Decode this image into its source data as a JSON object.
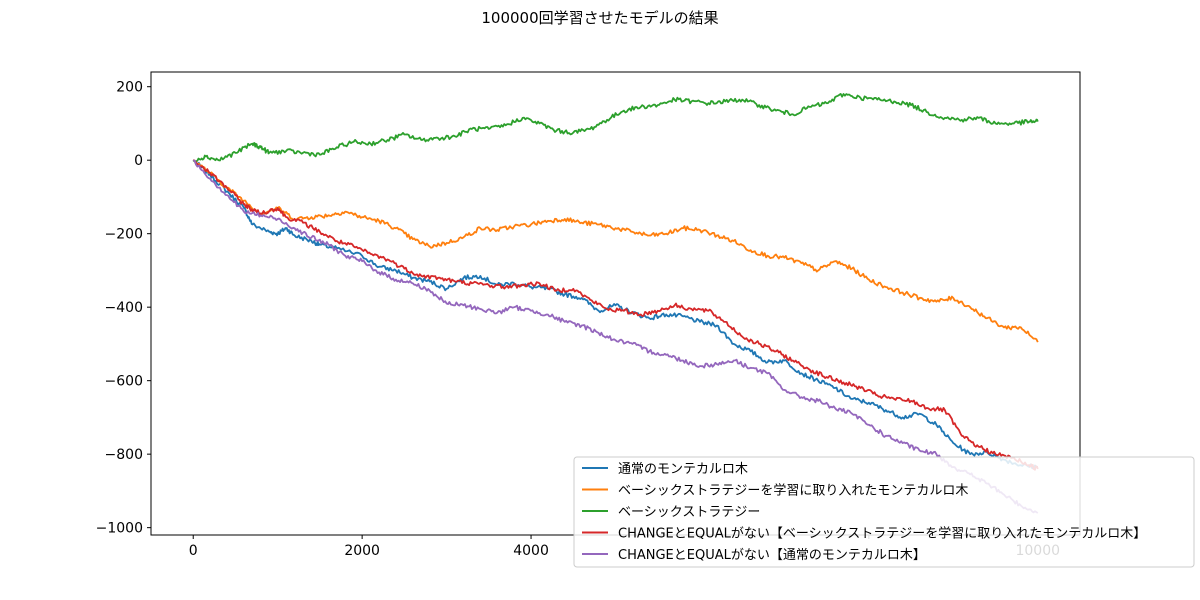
{
  "chart_data": {
    "type": "line",
    "title": "100000回学習させたモデルの結果",
    "xlabel": "",
    "ylabel": "",
    "xlim": [
      -500,
      10500
    ],
    "ylim": [
      -1020,
      240
    ],
    "x_ticks": [
      0,
      2000,
      4000,
      6000,
      8000,
      10000
    ],
    "x_tick_labels": [
      "0",
      "2000",
      "4000",
      "",
      "",
      "10000"
    ],
    "y_ticks": [
      200,
      0,
      -200,
      -400,
      -600,
      -800,
      -1000
    ],
    "y_tick_labels": [
      "200",
      "0",
      "−200",
      "−400",
      "−600",
      "−800",
      "−1000"
    ],
    "grid": false,
    "legend_position": "lower-right",
    "series": [
      {
        "name": "通常のモンテカルロ木",
        "color": "#1f77b4",
        "points": [
          [
            0,
            0
          ],
          [
            200,
            -40
          ],
          [
            400,
            -85
          ],
          [
            600,
            -130
          ],
          [
            700,
            -175
          ],
          [
            900,
            -195
          ],
          [
            1000,
            -200
          ],
          [
            1100,
            -185
          ],
          [
            1200,
            -205
          ],
          [
            1400,
            -220
          ],
          [
            1500,
            -230
          ],
          [
            1700,
            -240
          ],
          [
            2000,
            -260
          ],
          [
            2200,
            -290
          ],
          [
            2400,
            -300
          ],
          [
            2600,
            -320
          ],
          [
            2800,
            -330
          ],
          [
            3000,
            -350
          ],
          [
            3200,
            -320
          ],
          [
            3400,
            -315
          ],
          [
            3600,
            -340
          ],
          [
            3800,
            -335
          ],
          [
            4000,
            -345
          ],
          [
            4200,
            -350
          ],
          [
            4400,
            -365
          ],
          [
            4600,
            -375
          ],
          [
            4800,
            -410
          ],
          [
            5000,
            -395
          ],
          [
            5200,
            -415
          ],
          [
            5400,
            -430
          ],
          [
            5600,
            -420
          ],
          [
            5800,
            -425
          ],
          [
            6000,
            -440
          ],
          [
            6200,
            -450
          ],
          [
            6400,
            -500
          ],
          [
            6600,
            -520
          ],
          [
            6800,
            -550
          ],
          [
            7000,
            -545
          ],
          [
            7200,
            -580
          ],
          [
            7400,
            -600
          ],
          [
            7600,
            -620
          ],
          [
            7800,
            -650
          ],
          [
            8000,
            -660
          ],
          [
            8200,
            -680
          ],
          [
            8400,
            -700
          ],
          [
            8600,
            -690
          ],
          [
            8800,
            -720
          ],
          [
            9000,
            -770
          ],
          [
            9200,
            -800
          ],
          [
            9400,
            -795
          ],
          [
            9600,
            -815
          ],
          [
            9800,
            -830
          ],
          [
            10000,
            -835
          ]
        ]
      },
      {
        "name": "ベーシックストラテジーを学習に取り入れたモンテカルロ木",
        "color": "#ff7f0e",
        "points": [
          [
            0,
            0
          ],
          [
            200,
            -35
          ],
          [
            400,
            -75
          ],
          [
            600,
            -110
          ],
          [
            800,
            -145
          ],
          [
            1000,
            -130
          ],
          [
            1200,
            -160
          ],
          [
            1400,
            -155
          ],
          [
            1600,
            -150
          ],
          [
            1800,
            -140
          ],
          [
            2000,
            -155
          ],
          [
            2200,
            -165
          ],
          [
            2400,
            -185
          ],
          [
            2600,
            -215
          ],
          [
            2800,
            -235
          ],
          [
            3000,
            -225
          ],
          [
            3200,
            -210
          ],
          [
            3400,
            -185
          ],
          [
            3600,
            -190
          ],
          [
            3800,
            -180
          ],
          [
            4000,
            -175
          ],
          [
            4200,
            -165
          ],
          [
            4400,
            -160
          ],
          [
            4600,
            -170
          ],
          [
            4800,
            -175
          ],
          [
            5000,
            -185
          ],
          [
            5200,
            -195
          ],
          [
            5400,
            -205
          ],
          [
            5600,
            -200
          ],
          [
            5800,
            -185
          ],
          [
            6000,
            -190
          ],
          [
            6200,
            -205
          ],
          [
            6400,
            -220
          ],
          [
            6600,
            -245
          ],
          [
            6800,
            -260
          ],
          [
            7000,
            -265
          ],
          [
            7200,
            -280
          ],
          [
            7400,
            -300
          ],
          [
            7600,
            -275
          ],
          [
            7800,
            -295
          ],
          [
            8000,
            -325
          ],
          [
            8200,
            -345
          ],
          [
            8400,
            -360
          ],
          [
            8600,
            -375
          ],
          [
            8800,
            -385
          ],
          [
            9000,
            -375
          ],
          [
            9200,
            -400
          ],
          [
            9400,
            -430
          ],
          [
            9600,
            -455
          ],
          [
            9800,
            -455
          ],
          [
            10000,
            -495
          ]
        ]
      },
      {
        "name": "ベーシックストラテジー",
        "color": "#2ca02c",
        "points": [
          [
            0,
            0
          ],
          [
            150,
            10
          ],
          [
            300,
            0
          ],
          [
            500,
            20
          ],
          [
            700,
            45
          ],
          [
            800,
            35
          ],
          [
            900,
            20
          ],
          [
            1100,
            25
          ],
          [
            1300,
            20
          ],
          [
            1500,
            15
          ],
          [
            1700,
            35
          ],
          [
            1900,
            50
          ],
          [
            2100,
            45
          ],
          [
            2300,
            55
          ],
          [
            2500,
            70
          ],
          [
            2700,
            55
          ],
          [
            2900,
            60
          ],
          [
            3100,
            65
          ],
          [
            3300,
            85
          ],
          [
            3500,
            85
          ],
          [
            3700,
            95
          ],
          [
            3900,
            115
          ],
          [
            4100,
            100
          ],
          [
            4300,
            80
          ],
          [
            4500,
            75
          ],
          [
            4700,
            85
          ],
          [
            4900,
            110
          ],
          [
            5100,
            135
          ],
          [
            5300,
            145
          ],
          [
            5500,
            150
          ],
          [
            5700,
            165
          ],
          [
            5900,
            160
          ],
          [
            6100,
            155
          ],
          [
            6300,
            160
          ],
          [
            6500,
            165
          ],
          [
            6700,
            150
          ],
          [
            6900,
            135
          ],
          [
            7100,
            125
          ],
          [
            7300,
            145
          ],
          [
            7500,
            155
          ],
          [
            7700,
            180
          ],
          [
            7900,
            170
          ],
          [
            8100,
            165
          ],
          [
            8300,
            160
          ],
          [
            8500,
            150
          ],
          [
            8700,
            130
          ],
          [
            8900,
            115
          ],
          [
            9100,
            110
          ],
          [
            9300,
            115
          ],
          [
            9500,
            100
          ],
          [
            9700,
            100
          ],
          [
            9900,
            105
          ],
          [
            10000,
            105
          ]
        ]
      },
      {
        "name": "CHANGEとEQUALがない【ベーシックストラテジーを学習に取り入れたモンテカルロ木】",
        "color": "#d62728",
        "points": [
          [
            0,
            0
          ],
          [
            200,
            -35
          ],
          [
            400,
            -75
          ],
          [
            600,
            -120
          ],
          [
            700,
            -135
          ],
          [
            800,
            -145
          ],
          [
            1000,
            -130
          ],
          [
            1100,
            -155
          ],
          [
            1300,
            -170
          ],
          [
            1500,
            -195
          ],
          [
            1700,
            -220
          ],
          [
            1900,
            -235
          ],
          [
            2100,
            -255
          ],
          [
            2300,
            -270
          ],
          [
            2500,
            -295
          ],
          [
            2700,
            -315
          ],
          [
            2900,
            -320
          ],
          [
            3100,
            -330
          ],
          [
            3300,
            -335
          ],
          [
            3500,
            -340
          ],
          [
            3700,
            -345
          ],
          [
            3900,
            -340
          ],
          [
            4100,
            -335
          ],
          [
            4300,
            -355
          ],
          [
            4500,
            -350
          ],
          [
            4700,
            -380
          ],
          [
            4900,
            -405
          ],
          [
            5100,
            -410
          ],
          [
            5300,
            -420
          ],
          [
            5500,
            -410
          ],
          [
            5700,
            -395
          ],
          [
            5900,
            -405
          ],
          [
            6100,
            -410
          ],
          [
            6300,
            -440
          ],
          [
            6500,
            -480
          ],
          [
            6700,
            -500
          ],
          [
            6900,
            -520
          ],
          [
            7100,
            -545
          ],
          [
            7300,
            -570
          ],
          [
            7500,
            -590
          ],
          [
            7700,
            -605
          ],
          [
            7900,
            -620
          ],
          [
            8100,
            -640
          ],
          [
            8300,
            -650
          ],
          [
            8500,
            -655
          ],
          [
            8700,
            -675
          ],
          [
            8900,
            -680
          ],
          [
            9100,
            -750
          ],
          [
            9300,
            -780
          ],
          [
            9500,
            -800
          ],
          [
            9700,
            -810
          ],
          [
            9900,
            -830
          ],
          [
            10000,
            -840
          ]
        ]
      },
      {
        "name": "CHANGEとEQUALがない【通常のモンテカルロ木】",
        "color": "#9467bd",
        "points": [
          [
            0,
            0
          ],
          [
            200,
            -50
          ],
          [
            400,
            -95
          ],
          [
            600,
            -140
          ],
          [
            800,
            -150
          ],
          [
            1000,
            -160
          ],
          [
            1200,
            -185
          ],
          [
            1400,
            -210
          ],
          [
            1600,
            -230
          ],
          [
            1800,
            -260
          ],
          [
            2000,
            -275
          ],
          [
            2200,
            -305
          ],
          [
            2400,
            -325
          ],
          [
            2600,
            -335
          ],
          [
            2800,
            -355
          ],
          [
            3000,
            -390
          ],
          [
            3200,
            -395
          ],
          [
            3400,
            -405
          ],
          [
            3600,
            -415
          ],
          [
            3800,
            -400
          ],
          [
            4000,
            -410
          ],
          [
            4200,
            -420
          ],
          [
            4400,
            -440
          ],
          [
            4600,
            -450
          ],
          [
            4800,
            -470
          ],
          [
            5000,
            -490
          ],
          [
            5200,
            -500
          ],
          [
            5400,
            -520
          ],
          [
            5600,
            -530
          ],
          [
            5800,
            -545
          ],
          [
            6000,
            -560
          ],
          [
            6200,
            -555
          ],
          [
            6400,
            -545
          ],
          [
            6600,
            -565
          ],
          [
            6800,
            -580
          ],
          [
            7000,
            -625
          ],
          [
            7200,
            -645
          ],
          [
            7400,
            -655
          ],
          [
            7600,
            -675
          ],
          [
            7800,
            -690
          ],
          [
            8000,
            -720
          ],
          [
            8200,
            -750
          ],
          [
            8400,
            -770
          ],
          [
            8600,
            -790
          ],
          [
            8800,
            -800
          ],
          [
            9000,
            -835
          ],
          [
            9200,
            -855
          ],
          [
            9400,
            -880
          ],
          [
            9600,
            -910
          ],
          [
            9800,
            -940
          ],
          [
            10000,
            -960
          ]
        ]
      }
    ]
  }
}
